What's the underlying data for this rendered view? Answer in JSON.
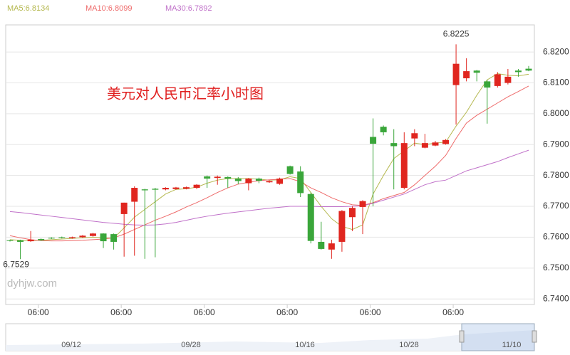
{
  "chart_data": {
    "type": "candlestick",
    "title": "美元对人民币汇率小时图",
    "watermark": "dyhjw.com",
    "categories": [
      null,
      null,
      null,
      "06:00",
      null,
      null,
      null,
      null,
      null,
      null,
      null,
      "06:00",
      null,
      null,
      null,
      null,
      null,
      null,
      null,
      "06:00",
      null,
      null,
      null,
      null,
      null,
      null,
      null,
      "06:00",
      null,
      null,
      null,
      null,
      null,
      null,
      null,
      "06:00",
      null,
      null,
      null,
      null,
      null,
      null,
      null,
      "06:00",
      null,
      null,
      null,
      null,
      null,
      null,
      null
    ],
    "open": [
      6.759,
      6.759,
      6.7587,
      6.7594,
      6.7598,
      6.76,
      6.7597,
      6.76,
      6.7604,
      6.7612,
      6.761,
      6.7675,
      6.7715,
      6.7755,
      6.7757,
      6.7755,
      6.7756,
      6.7757,
      6.776,
      6.7797,
      6.7792,
      6.7795,
      6.779,
      6.7775,
      6.779,
      6.7778,
      6.7773,
      6.783,
      6.7813,
      6.774,
      6.7585,
      6.756,
      6.7585,
      6.7665,
      6.7698,
      6.7925,
      6.7958,
      6.7905,
      6.776,
      6.792,
      6.789,
      6.7897,
      6.7902,
      6.8093,
      6.8115,
      6.814,
      6.8105,
      6.809,
      6.81,
      6.814,
      6.8146
    ],
    "high": [
      6.7592,
      6.7592,
      6.762,
      6.7596,
      6.76,
      6.7602,
      6.7602,
      6.7607,
      6.7614,
      6.7613,
      6.7612,
      6.7712,
      6.7765,
      6.7757,
      6.776,
      6.7762,
      6.7763,
      6.7764,
      6.7772,
      6.78,
      6.78,
      6.7797,
      6.7795,
      6.7792,
      6.7793,
      6.7784,
      6.7793,
      6.7832,
      6.783,
      6.7745,
      6.765,
      6.7592,
      6.7688,
      6.77,
      6.772,
      6.7985,
      6.7962,
      6.795,
      6.794,
      6.795,
      6.7935,
      6.7912,
      6.7918,
      6.8225,
      6.818,
      6.8142,
      6.811,
      6.8135,
      6.8145,
      6.8145,
      6.8155
    ],
    "low": [
      6.7586,
      6.7529,
      6.7585,
      6.7588,
      6.7594,
      6.7596,
      6.7595,
      6.7598,
      6.7602,
      6.7565,
      6.756,
      6.7537,
      6.754,
      6.753,
      6.7535,
      6.7752,
      6.7754,
      6.7755,
      6.7756,
      6.776,
      6.777,
      6.776,
      6.7772,
      6.7752,
      6.7775,
      6.7776,
      6.777,
      6.7803,
      6.773,
      6.758,
      6.756,
      6.753,
      6.7553,
      6.762,
      6.761,
      6.77,
      6.793,
      6.7755,
      6.7755,
      6.7895,
      6.7888,
      6.7895,
      6.79,
      6.7965,
      6.8105,
      6.8105,
      6.7968,
      6.8085,
      6.8095,
      6.812,
      6.8138
    ],
    "close": [
      6.7588,
      6.7585,
      6.7592,
      6.759,
      6.7596,
      6.7598,
      6.76,
      6.7605,
      6.7612,
      6.7587,
      6.7585,
      6.7712,
      6.776,
      6.7752,
      6.7754,
      6.776,
      6.7761,
      6.7762,
      6.777,
      6.779,
      6.7796,
      6.779,
      6.7782,
      6.779,
      6.7783,
      6.7782,
      6.779,
      6.7805,
      6.7743,
      6.7588,
      6.7562,
      6.758,
      6.7685,
      6.7695,
      6.7717,
      6.7903,
      6.794,
      6.7895,
      6.7905,
      6.7937,
      6.7905,
      6.7907,
      6.7915,
      6.8162,
      6.8138,
      6.8133,
      6.8085,
      6.8128,
      6.812,
      6.8135,
      6.814
    ],
    "up_color": "#e0261f",
    "down_color": "#3aa63a",
    "high_marker": "6.8225",
    "low_marker": "6.7529",
    "series": [
      {
        "name": "MA5:6.8134",
        "color": "#b5b84f",
        "values": [
          6.7592,
          6.759,
          6.7589,
          6.759,
          6.7592,
          6.7594,
          6.7596,
          6.7598,
          6.76,
          6.7598,
          6.7597,
          6.763,
          6.7665,
          6.769,
          6.7715,
          6.774,
          6.7755,
          6.7757,
          6.7762,
          6.7775,
          6.7785,
          6.779,
          6.779,
          6.779,
          6.7788,
          6.7785,
          6.7786,
          6.7796,
          6.779,
          6.7745,
          6.77,
          6.766,
          6.7635,
          6.7625,
          6.764,
          6.774,
          6.78,
          6.7855,
          6.788,
          6.7905,
          6.79,
          6.7905,
          6.7908,
          6.796,
          6.8005,
          6.806,
          6.811,
          6.813,
          6.8125,
          6.8123,
          6.8128
        ]
      },
      {
        "name": "MA10:6.8099",
        "color": "#ee6a6a",
        "values": [
          6.7605,
          6.7598,
          6.7592,
          6.7589,
          6.7588,
          6.7588,
          6.7589,
          6.759,
          6.7592,
          6.7594,
          6.7598,
          6.761,
          6.7625,
          6.764,
          6.7655,
          6.7668,
          6.7682,
          6.7698,
          6.7712,
          6.7728,
          6.7745,
          6.776,
          6.7772,
          6.7778,
          6.7783,
          6.7786,
          6.7788,
          6.779,
          6.778,
          6.776,
          6.7745,
          6.7728,
          6.7715,
          6.7705,
          6.7703,
          6.7712,
          6.7725,
          6.7735,
          6.7745,
          6.777,
          6.78,
          6.783,
          6.7865,
          6.792,
          6.797,
          6.7995,
          6.8015,
          6.8035,
          6.8055,
          6.8072,
          6.809
        ]
      },
      {
        "name": "MA30:6.7892",
        "color": "#c071c9",
        "values": [
          6.7683,
          6.768,
          6.7676,
          6.7672,
          6.7668,
          6.7664,
          6.766,
          6.7656,
          6.7652,
          6.7648,
          6.7645,
          6.7642,
          6.764,
          6.7639,
          6.764,
          6.7643,
          6.7648,
          6.7655,
          6.7662,
          6.7668,
          6.7673,
          6.7678,
          6.7682,
          6.7686,
          6.769,
          6.7694,
          6.7697,
          6.77,
          6.77,
          6.77,
          6.7699,
          6.7699,
          6.7699,
          6.77,
          6.7702,
          6.771,
          6.772,
          6.773,
          6.774,
          6.7755,
          6.777,
          6.778,
          6.7785,
          6.78,
          6.7815,
          6.7825,
          6.7835,
          6.7845,
          6.7858,
          6.787,
          6.7882
        ]
      }
    ],
    "ylim": [
      6.7382,
      6.8288
    ],
    "yticks": [
      {
        "value": 6.74,
        "label": "6.7400"
      },
      {
        "value": 6.75,
        "label": "6.7500"
      },
      {
        "value": 6.76,
        "label": "6.7600"
      },
      {
        "value": 6.77,
        "label": "6.7700"
      },
      {
        "value": 6.78,
        "label": "6.7800"
      },
      {
        "value": 6.79,
        "label": "6.7900"
      },
      {
        "value": 6.8,
        "label": "6.8000"
      },
      {
        "value": 6.81,
        "label": "6.8100"
      },
      {
        "value": 6.82,
        "label": "6.8200"
      }
    ],
    "grid": true,
    "navigator_labels": [
      "09/12",
      "09/28",
      "10/16",
      "10/28",
      "11/10"
    ]
  }
}
